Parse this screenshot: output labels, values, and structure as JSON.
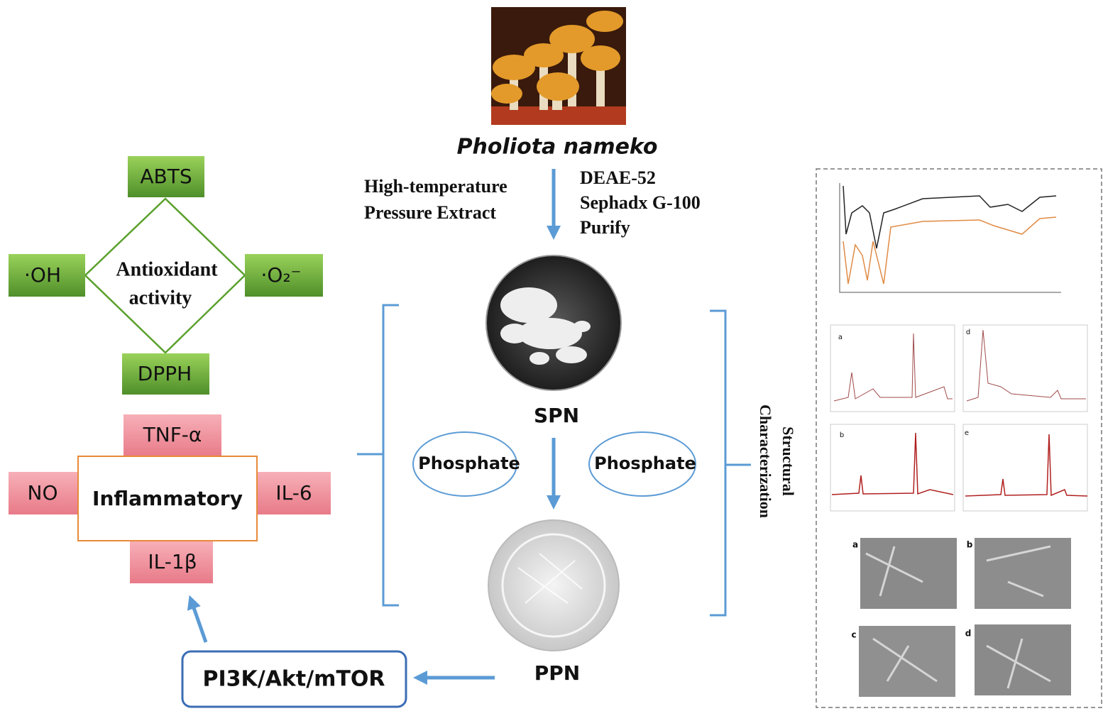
{
  "title": "Pholiota nameko",
  "extraction": {
    "lines": [
      "High-temperature",
      "Pressure Extract"
    ]
  },
  "purification": {
    "lines": [
      "DEAE-52",
      "Sephadx G-100",
      "Purify"
    ]
  },
  "products": {
    "spn": "SPN",
    "ppn": "PPN"
  },
  "modification": {
    "left": "Phosphate",
    "right": "Phosphate"
  },
  "characterization": {
    "lines": [
      "Structural",
      "Characterization"
    ],
    "nmr_panels": [
      "a",
      "d",
      "b",
      "e"
    ],
    "sem_panels": [
      "a",
      "b",
      "c",
      "d"
    ]
  },
  "antioxidant": {
    "center": [
      "Antioxidant",
      "activity"
    ],
    "top": "ABTS",
    "left": "·OH",
    "right": "·O₂⁻",
    "bottom": "DPPH"
  },
  "inflammatory": {
    "center": "Inflammatory",
    "top": "TNF-α",
    "left": "NO",
    "right": "IL-6",
    "bottom": "IL-1β"
  },
  "pathway": "PI3K/Akt/mTOR"
}
